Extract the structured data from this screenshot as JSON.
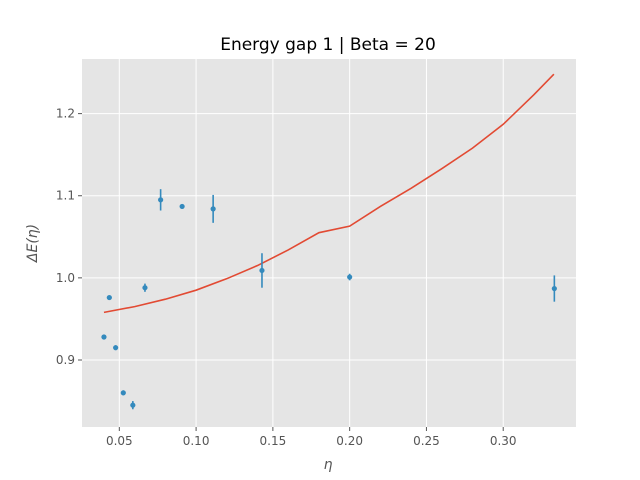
{
  "chart_data": {
    "type": "scatter",
    "title": "Energy gap 1 | Beta = 20",
    "xlabel": "η",
    "ylabel": "ΔE(η)",
    "xlim": [
      0.0257,
      0.3474
    ],
    "ylim": [
      0.8184,
      1.2665
    ],
    "xticks": [
      0.05,
      0.1,
      0.15,
      0.2,
      0.25,
      0.3
    ],
    "xtick_labels": [
      "0.05",
      "0.10",
      "0.15",
      "0.20",
      "0.25",
      "0.30"
    ],
    "yticks": [
      0.9,
      1.0,
      1.1,
      1.2
    ],
    "ytick_labels": [
      "0.9",
      "1.0",
      "1.1",
      "1.2"
    ],
    "grid": true,
    "series": [
      {
        "kind": "errorbar-points",
        "color": "#348ABD",
        "points": [
          {
            "x": 0.04,
            "y": 0.928,
            "err": 0.002
          },
          {
            "x": 0.0435,
            "y": 0.976,
            "err": 0.002
          },
          {
            "x": 0.0476,
            "y": 0.915,
            "err": 0.003
          },
          {
            "x": 0.0526,
            "y": 0.86,
            "err": 0.003
          },
          {
            "x": 0.0588,
            "y": 0.845,
            "err": 0.005
          },
          {
            "x": 0.0667,
            "y": 0.988,
            "err": 0.005
          },
          {
            "x": 0.0769,
            "y": 1.095,
            "err": 0.013
          },
          {
            "x": 0.0909,
            "y": 1.087,
            "err": 0.002
          },
          {
            "x": 0.1111,
            "y": 1.084,
            "err": 0.017
          },
          {
            "x": 0.1429,
            "y": 1.009,
            "err": 0.021
          },
          {
            "x": 0.2,
            "y": 1.001,
            "err": 0.004
          },
          {
            "x": 0.3333,
            "y": 0.987,
            "err": 0.016
          }
        ]
      },
      {
        "kind": "fit-line",
        "color": "#E24A33",
        "points": [
          {
            "x": 0.04,
            "y": 0.958
          },
          {
            "x": 0.06,
            "y": 0.965
          },
          {
            "x": 0.08,
            "y": 0.974
          },
          {
            "x": 0.1,
            "y": 0.985
          },
          {
            "x": 0.12,
            "y": 0.999
          },
          {
            "x": 0.14,
            "y": 1.015
          },
          {
            "x": 0.16,
            "y": 1.034
          },
          {
            "x": 0.18,
            "y": 1.055
          },
          {
            "x": 0.2,
            "y": 1.063
          },
          {
            "x": 0.22,
            "y": 1.087
          },
          {
            "x": 0.24,
            "y": 1.109
          },
          {
            "x": 0.26,
            "y": 1.133
          },
          {
            "x": 0.28,
            "y": 1.158
          },
          {
            "x": 0.3,
            "y": 1.187
          },
          {
            "x": 0.32,
            "y": 1.223
          },
          {
            "x": 0.333,
            "y": 1.248
          }
        ]
      }
    ]
  }
}
